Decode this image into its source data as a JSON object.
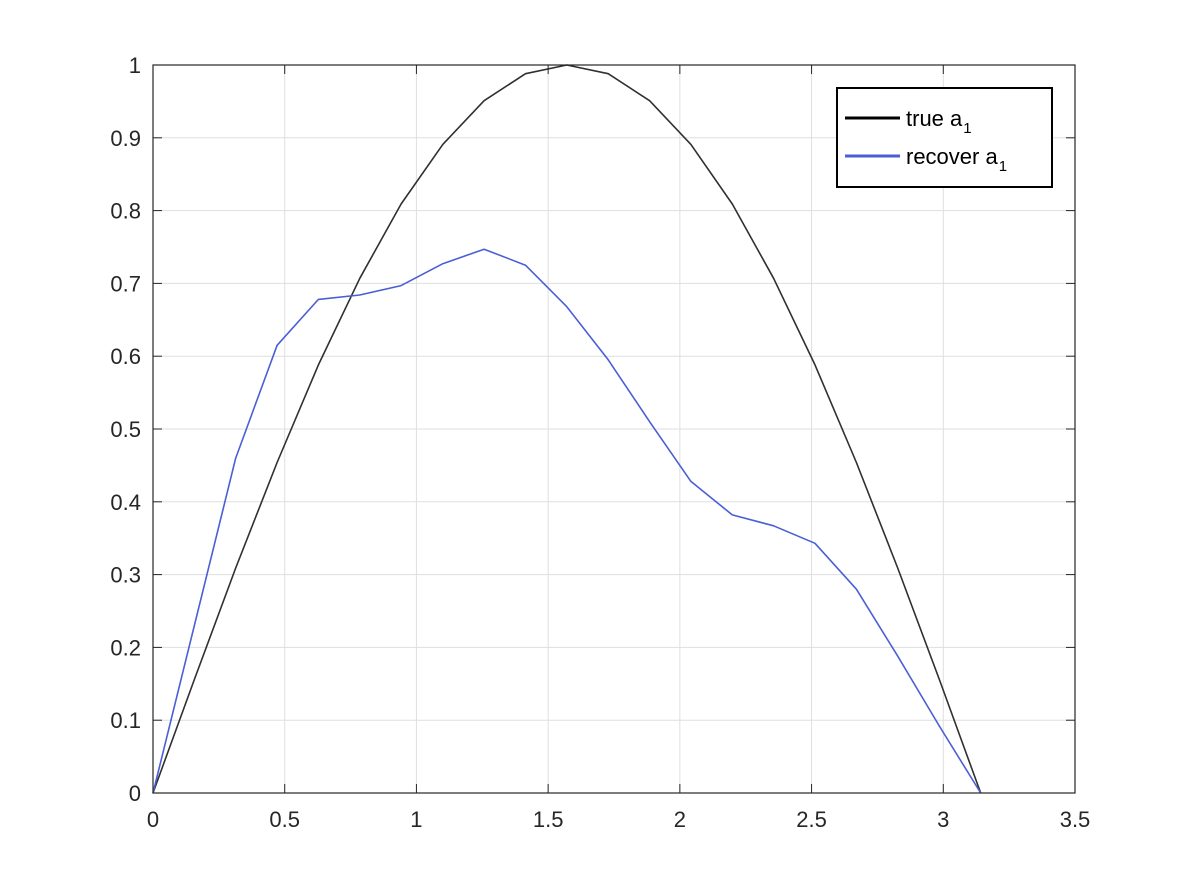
{
  "chart_data": {
    "type": "line",
    "title": "",
    "xlabel": "",
    "ylabel": "",
    "xlim": [
      0,
      3.5
    ],
    "ylim": [
      0,
      1
    ],
    "xticks": [
      "0",
      "0.5",
      "1",
      "1.5",
      "2",
      "2.5",
      "3",
      "3.5"
    ],
    "yticks": [
      "0",
      "0.1",
      "0.2",
      "0.3",
      "0.4",
      "0.5",
      "0.6",
      "0.7",
      "0.8",
      "0.9",
      "1"
    ],
    "grid": true,
    "legend_position": "top-right",
    "series": [
      {
        "name": "true a",
        "name_subscript": "1",
        "color": "#303030",
        "x": [
          0,
          0.157,
          0.314,
          0.471,
          0.628,
          0.785,
          0.942,
          1.1,
          1.257,
          1.414,
          1.571,
          1.728,
          1.885,
          2.042,
          2.199,
          2.356,
          2.513,
          2.67,
          2.827,
          2.985,
          3.142
        ],
        "y": [
          0,
          0.156,
          0.309,
          0.454,
          0.588,
          0.707,
          0.809,
          0.891,
          0.951,
          0.988,
          1.0,
          0.988,
          0.951,
          0.891,
          0.809,
          0.707,
          0.588,
          0.454,
          0.309,
          0.156,
          0
        ]
      },
      {
        "name": "recover a",
        "name_subscript": "1",
        "color": "#4a5fd4",
        "x": [
          0,
          0.314,
          0.471,
          0.628,
          0.785,
          0.942,
          1.1,
          1.257,
          1.414,
          1.571,
          1.728,
          1.885,
          2.042,
          2.199,
          2.356,
          2.513,
          2.67,
          2.827,
          2.985,
          3.142
        ],
        "y": [
          0,
          0.46,
          0.615,
          0.678,
          0.684,
          0.697,
          0.727,
          0.747,
          0.725,
          0.668,
          0.595,
          0.51,
          0.428,
          0.382,
          0.367,
          0.343,
          0.28,
          0.188,
          0.092,
          0
        ]
      }
    ]
  }
}
